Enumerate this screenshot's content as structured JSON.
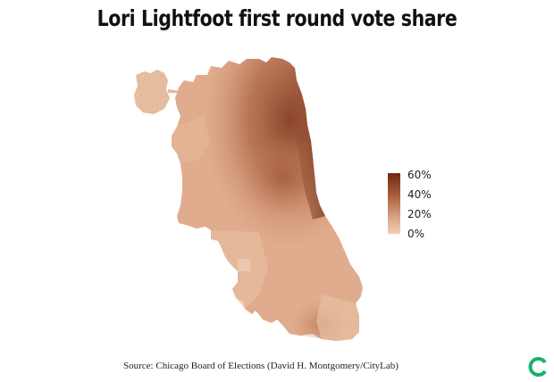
{
  "title": "Lori Lightfoot first round vote share",
  "legend": {
    "labels": [
      "60%",
      "40%",
      "20%",
      "0%"
    ],
    "color_high": "#6e2a14",
    "color_low": "#f3cfb4"
  },
  "source": "Source: Chicago Board of Elections (David H. Montgomery/CityLab)",
  "logo_icon": "citylab-logo-icon",
  "colors": {
    "dark": "#7a3018",
    "mid": "#b26e4e",
    "light": "#e2ad8e",
    "pale": "#efc6a8",
    "logo": "#17b26a"
  }
}
